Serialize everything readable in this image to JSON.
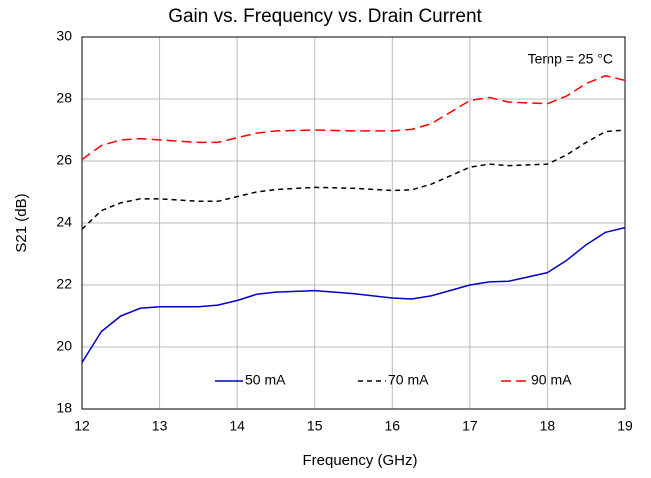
{
  "chart_data": {
    "type": "line",
    "title": "Gain vs. Frequency vs. Drain Current",
    "xlabel": "Frequency (GHz)",
    "ylabel": "S21 (dB)",
    "annotation": "Temp = 25 °C",
    "x": [
      12,
      12.25,
      12.5,
      12.75,
      13,
      13.5,
      13.75,
      14,
      14.25,
      14.5,
      15,
      15.5,
      16,
      16.25,
      16.5,
      17,
      17.25,
      17.5,
      18,
      18.25,
      18.5,
      18.75,
      19
    ],
    "series": [
      {
        "name": "50 mA",
        "color": "#0000cc",
        "dash": "solid",
        "values": [
          19.5,
          20.5,
          21.0,
          21.25,
          21.3,
          21.3,
          21.35,
          21.5,
          21.7,
          21.77,
          21.82,
          21.72,
          21.58,
          21.55,
          21.65,
          22.0,
          22.1,
          22.12,
          22.4,
          22.8,
          23.3,
          23.7,
          23.85
        ]
      },
      {
        "name": "70 mA",
        "color": "#000000",
        "dash": "dashed",
        "values": [
          23.8,
          24.4,
          24.65,
          24.78,
          24.78,
          24.7,
          24.7,
          24.85,
          25.0,
          25.08,
          25.15,
          25.12,
          25.05,
          25.07,
          25.25,
          25.8,
          25.9,
          25.85,
          25.9,
          26.2,
          26.6,
          26.95,
          27.0
        ]
      },
      {
        "name": "90 mA",
        "color": "#ff0000",
        "dash": "longdash",
        "values": [
          26.05,
          26.5,
          26.68,
          26.72,
          26.68,
          26.6,
          26.6,
          26.75,
          26.9,
          26.97,
          27.0,
          26.97,
          26.97,
          27.02,
          27.2,
          27.95,
          28.05,
          27.9,
          27.85,
          28.1,
          28.5,
          28.75,
          28.6
        ]
      }
    ],
    "xlim": [
      12,
      19
    ],
    "xticks": [
      12,
      13,
      14,
      15,
      16,
      17,
      18,
      19
    ],
    "ylim": [
      18,
      30
    ],
    "yticks": [
      18,
      20,
      22,
      24,
      26,
      28,
      30
    ],
    "grid": true,
    "legend": "bottom"
  }
}
